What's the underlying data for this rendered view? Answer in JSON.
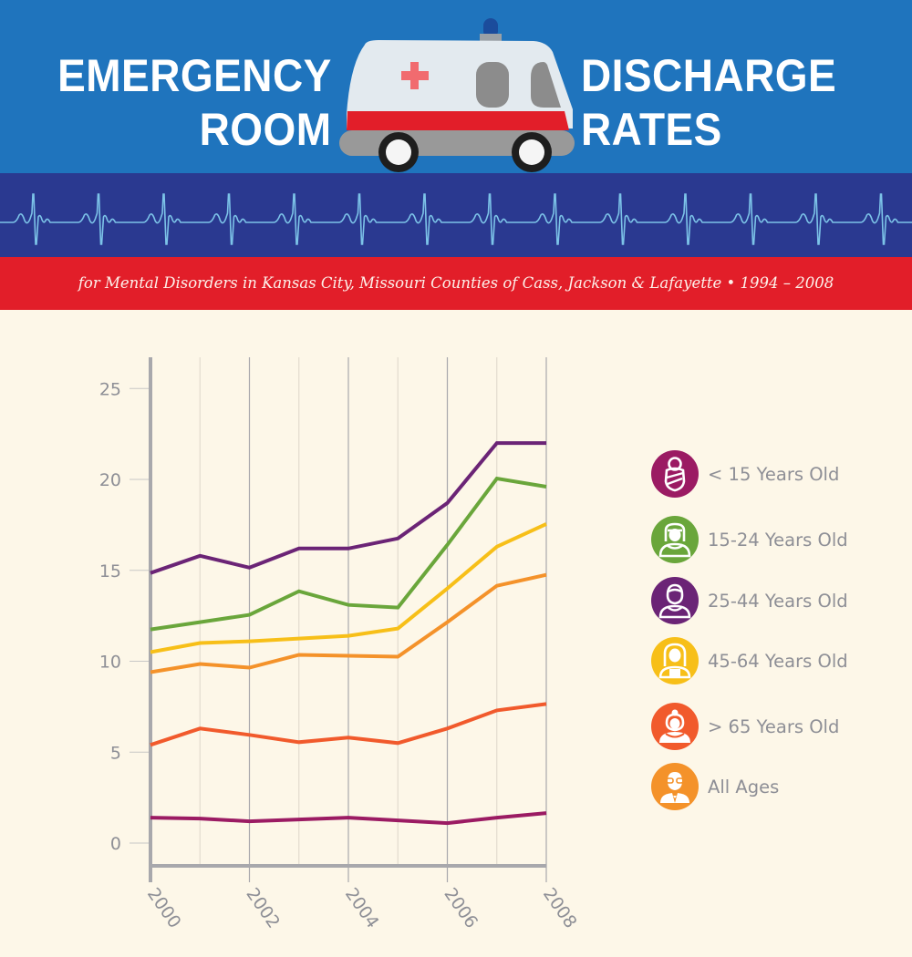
{
  "header": {
    "title_left": [
      "EMERGENCY",
      "ROOM"
    ],
    "title_right": [
      "DISCHARGE",
      "RATES"
    ],
    "subtitle": "for Mental Disorders in Kansas City, Missouri Counties of Cass, Jackson & Lafayette • 1994 – 2008",
    "icons": {
      "vehicle": "ambulance-icon",
      "strip": "heartbeat-ecg-icon"
    },
    "colors": {
      "top_band": "#1f74bd",
      "ecg_band": "#2a3990",
      "ecg_line": "#7cc3e8",
      "subtitle_band": "#e21e29"
    }
  },
  "chart_data": {
    "type": "line",
    "title": "Emergency Room Discharge Rates",
    "subtitle": "for Mental Disorders in Kansas City, Missouri Counties of Cass, Jackson & Lafayette • 1994 – 2008",
    "xlabel": "",
    "ylabel": "",
    "x": [
      2000,
      2001,
      2002,
      2003,
      2004,
      2005,
      2006,
      2007,
      2008
    ],
    "x_tick_labels": [
      "2000",
      "2002",
      "2004",
      "2006",
      "2008"
    ],
    "x_tick_values": [
      2000,
      2002,
      2004,
      2006,
      2008
    ],
    "y_tick_labels": [
      "0",
      "5",
      "10",
      "15",
      "20",
      "25"
    ],
    "y_tick_values": [
      0,
      5,
      10,
      15,
      20,
      25
    ],
    "xlim": [
      2000,
      2008
    ],
    "ylim": [
      -1.2,
      26.6
    ],
    "grid": "vertical",
    "legend_position": "right",
    "series": [
      {
        "name": "< 15 Years Old",
        "color": "#9b1b63",
        "icon": "swaddled-baby-icon",
        "values": [
          1.4,
          1.35,
          1.2,
          1.3,
          1.4,
          1.25,
          1.1,
          1.4,
          1.65
        ]
      },
      {
        "name": "15-24 Years Old",
        "color": "#6aa63b",
        "icon": "young-person-icon",
        "values": [
          11.75,
          12.15,
          12.55,
          13.85,
          13.1,
          12.95,
          16.4,
          20.05,
          19.6
        ]
      },
      {
        "name": "25-44 Years Old",
        "color": "#6b2476",
        "icon": "adult-man-icon",
        "values": [
          14.85,
          15.8,
          15.15,
          16.2,
          16.2,
          16.75,
          18.7,
          22.0,
          22.0
        ]
      },
      {
        "name": "45-64 Years Old",
        "color": "#f7bf18",
        "icon": "middle-aged-woman-icon",
        "values": [
          10.5,
          11.0,
          11.1,
          11.25,
          11.4,
          11.8,
          14.0,
          16.3,
          17.55
        ]
      },
      {
        "name": "> 65 Years Old",
        "color": "#f15a2c",
        "icon": "elderly-woman-icon",
        "values": [
          5.4,
          6.3,
          5.95,
          5.55,
          5.8,
          5.5,
          6.3,
          7.3,
          7.65
        ]
      },
      {
        "name": "All Ages",
        "color": "#f4922a",
        "icon": "elderly-man-glasses-icon",
        "values": [
          9.4,
          9.85,
          9.65,
          10.35,
          10.3,
          10.25,
          12.15,
          14.15,
          14.75
        ]
      }
    ]
  }
}
